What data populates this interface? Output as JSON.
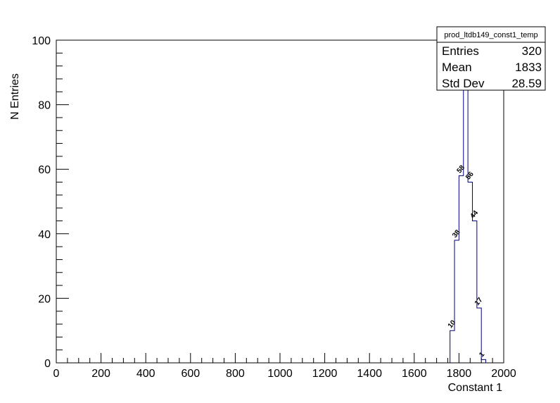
{
  "chart_data": {
    "type": "bar",
    "histogram_name": "prod_ltdb149_const1_temp",
    "xlabel": "Constant 1",
    "ylabel": "N Entries",
    "xlim": [
      0,
      2000
    ],
    "ylim": [
      0,
      100
    ],
    "x_ticks": [
      0,
      200,
      400,
      600,
      800,
      1000,
      1200,
      1400,
      1600,
      1800,
      2000
    ],
    "y_ticks": [
      0,
      20,
      40,
      60,
      80,
      100
    ],
    "bin_width": 20,
    "bins": [
      {
        "low": 1760,
        "value": 10,
        "label": "10"
      },
      {
        "low": 1780,
        "value": 38,
        "label": "38"
      },
      {
        "low": 1800,
        "value": 58,
        "label": "58"
      },
      {
        "low": 1820,
        "value": 96,
        "label": ""
      },
      {
        "low": 1840,
        "value": 56,
        "label": "56"
      },
      {
        "low": 1860,
        "value": 44,
        "label": "44"
      },
      {
        "low": 1880,
        "value": 17,
        "label": "17"
      },
      {
        "low": 1900,
        "value": 1,
        "label": "1"
      }
    ],
    "stats": {
      "entries_label": "Entries",
      "entries": "320",
      "mean_label": "Mean",
      "mean": "1833",
      "stddev_label": "Std Dev",
      "stddev": "28.59"
    },
    "grid": false,
    "legend_placement": "top-right",
    "line_color": "#00007f"
  }
}
